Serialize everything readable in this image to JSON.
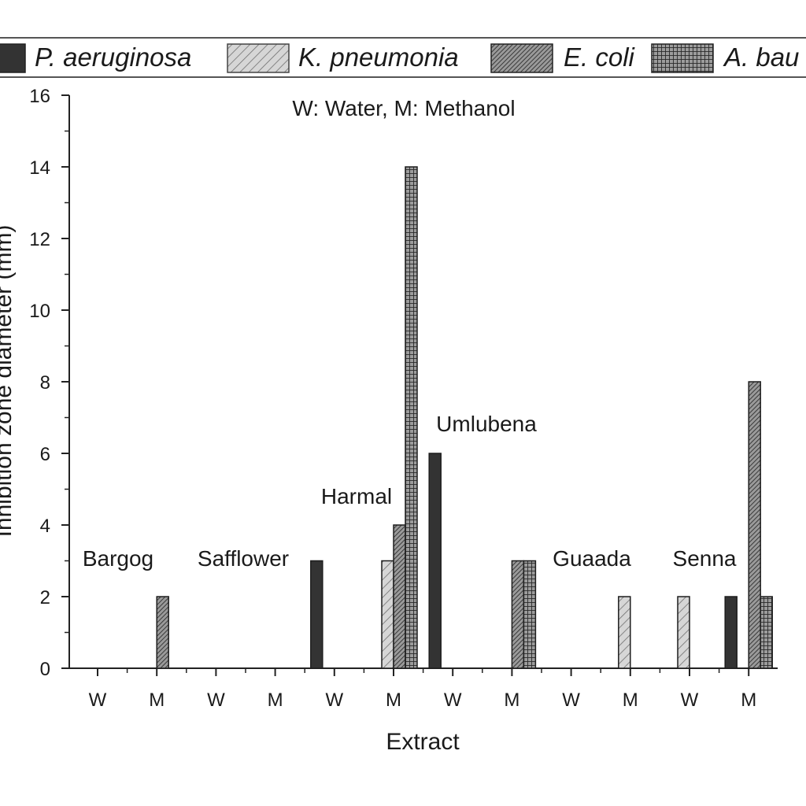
{
  "chart_data": {
    "type": "bar",
    "note": "W: Water, M: Methanol",
    "xlabel": "Extract",
    "ylabel": "Inhibition zone diameter (mm)",
    "ylim": [
      0,
      16
    ],
    "yticks": [
      0,
      2,
      4,
      6,
      8,
      10,
      12,
      14,
      16
    ],
    "categories": [
      "W",
      "M",
      "W",
      "M",
      "W",
      "M",
      "W",
      "M",
      "W",
      "M",
      "W",
      "M"
    ],
    "groups": [
      {
        "label": "Bargog",
        "categories": [
          0,
          1
        ]
      },
      {
        "label": "Safflower",
        "categories": [
          2,
          3
        ]
      },
      {
        "label": "Harmal",
        "categories": [
          4,
          5
        ]
      },
      {
        "label": "Umlubena",
        "categories": [
          6,
          7
        ]
      },
      {
        "label": "Guaada",
        "categories": [
          8,
          9
        ]
      },
      {
        "label": "Senna",
        "categories": [
          10,
          11
        ]
      }
    ],
    "series": [
      {
        "name": "P. aeruginosa",
        "pattern": "solid",
        "values": [
          0,
          0,
          0,
          0,
          3,
          0,
          6,
          0,
          0,
          0,
          0,
          2
        ]
      },
      {
        "name": "K. pneumonia",
        "pattern": "light-hatch",
        "values": [
          0,
          0,
          0,
          0,
          0,
          3,
          0,
          0,
          0,
          2,
          2,
          0
        ]
      },
      {
        "name": "E. coli",
        "pattern": "dense-hatch",
        "values": [
          0,
          2,
          0,
          0,
          0,
          4,
          0,
          3,
          0,
          0,
          0,
          8
        ]
      },
      {
        "name": "A. bau",
        "pattern": "crosshatch",
        "values": [
          0,
          0,
          0,
          0,
          0,
          14,
          0,
          3,
          0,
          0,
          0,
          2
        ]
      }
    ],
    "legend": "top",
    "grid": false,
    "colors": {
      "solid": "#333333",
      "light": "#d4d4d4",
      "dense": "#6a6a6a",
      "cross": "#555555"
    }
  }
}
